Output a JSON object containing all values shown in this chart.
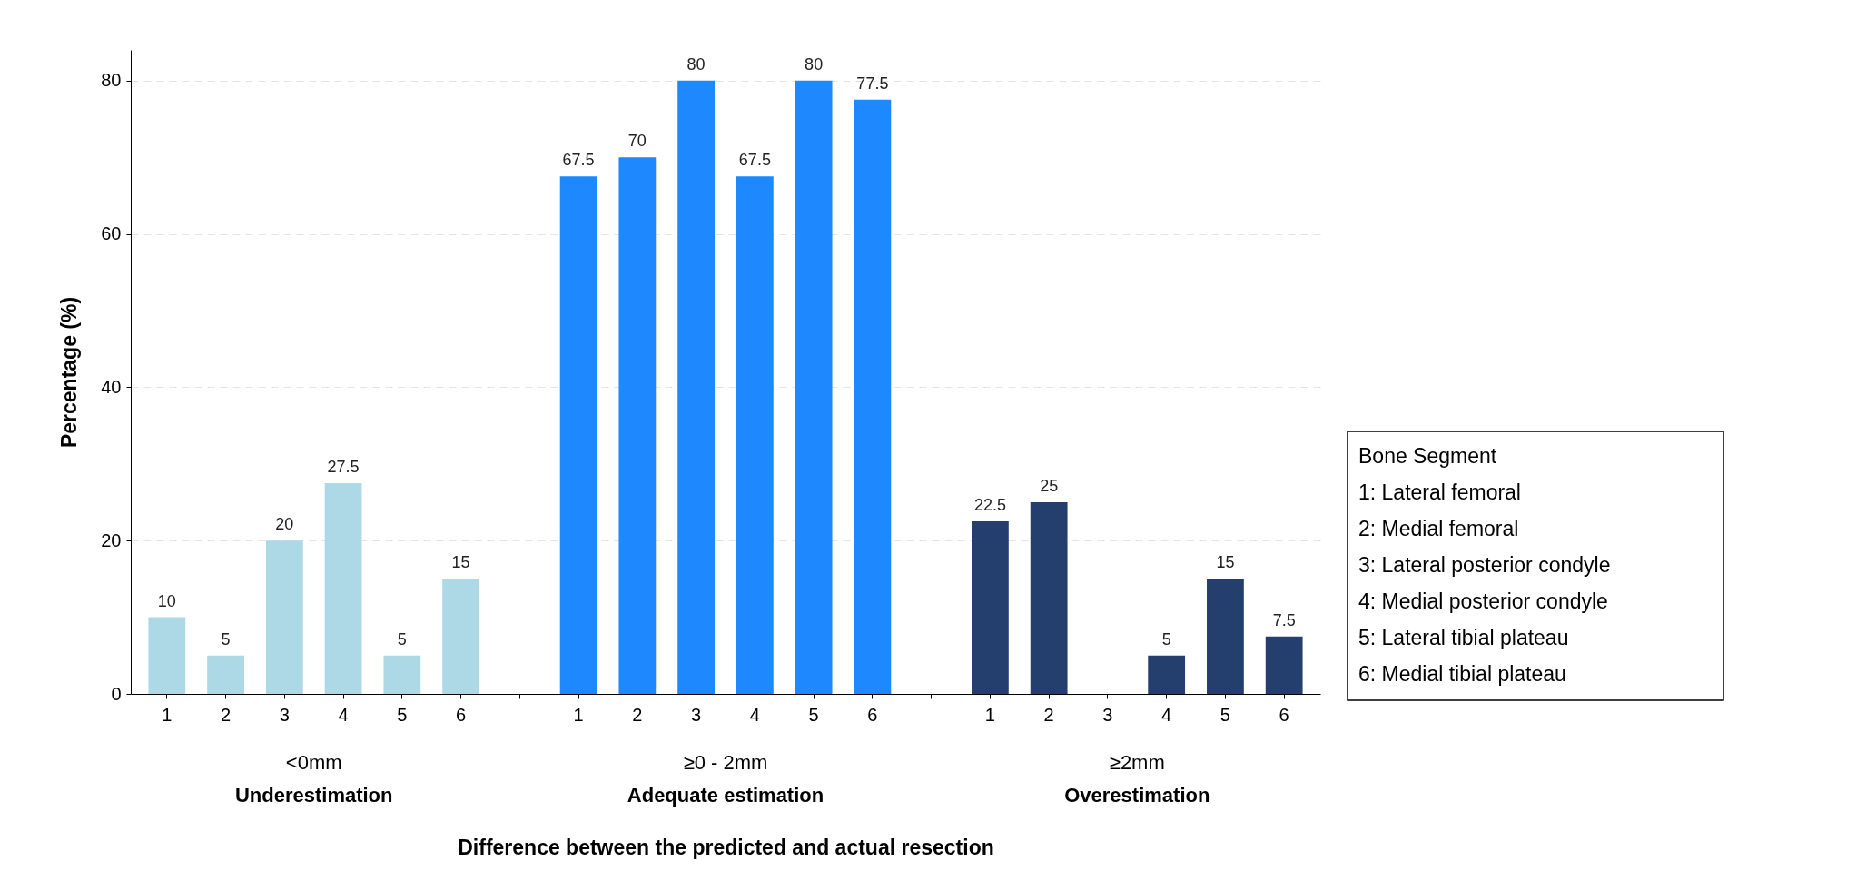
{
  "chart_data": [
    {
      "type": "bar",
      "xlabel": "Difference between the predicted and actual resection",
      "ylabel": "Percentage (%)",
      "categories": [
        "1",
        "2",
        "3",
        "4",
        "5",
        "6",
        null,
        "1",
        "2",
        "3",
        "4",
        "5",
        "6",
        null,
        "1",
        "2",
        "3",
        "4",
        "5",
        "6"
      ],
      "series": [
        {
          "name": "<0mm",
          "color": "#add8e6",
          "values": [
            10,
            5,
            20,
            27.5,
            5,
            15,
            null,
            null,
            null,
            null,
            null,
            null,
            null,
            null,
            null,
            null,
            null,
            null,
            null,
            null
          ],
          "value_labels": [
            "10",
            "5",
            "20",
            "27.5",
            "5",
            "15",
            null,
            null,
            null,
            null,
            null,
            null,
            null,
            null,
            null,
            null,
            null,
            null,
            null,
            null
          ]
        },
        {
          "name": "≥0 - 2mm",
          "color": "#1e88ff",
          "values": [
            null,
            null,
            null,
            null,
            null,
            null,
            null,
            67.5,
            70,
            80,
            67.5,
            80,
            77.5,
            null,
            null,
            null,
            null,
            null,
            null,
            null
          ],
          "value_labels": [
            null,
            null,
            null,
            null,
            null,
            null,
            null,
            "67.5",
            "70",
            "80",
            "67.5",
            "80",
            "77.5",
            null,
            null,
            null,
            null,
            null,
            null,
            null
          ]
        },
        {
          "name": "≥2mm",
          "color": "#243f6e",
          "values": [
            null,
            null,
            null,
            null,
            null,
            null,
            null,
            null,
            null,
            null,
            null,
            null,
            null,
            null,
            22.5,
            25,
            0,
            5,
            15,
            7.5
          ],
          "value_labels": [
            null,
            null,
            null,
            null,
            null,
            null,
            null,
            null,
            null,
            null,
            null,
            null,
            null,
            null,
            "22.5",
            "25",
            null,
            "5",
            "15",
            "7.5"
          ]
        }
      ],
      "annotations": [
        "Underestimation",
        "Adequate estimation",
        "Overestimation"
      ],
      "ylim": [
        0,
        84
      ],
      "yticks": [
        0,
        20,
        40,
        60,
        80
      ],
      "grid": "y"
    },
    {
      "type": "other",
      "title": "Bone Segment",
      "annotations": [
        "1: Lateral femoral",
        "2: Medial femoral",
        "3: Lateral posterior condyle",
        "4: Medial posterior condyle",
        "5: Lateral tibial plateau",
        "6: Medial tibial plateau"
      ]
    }
  ]
}
